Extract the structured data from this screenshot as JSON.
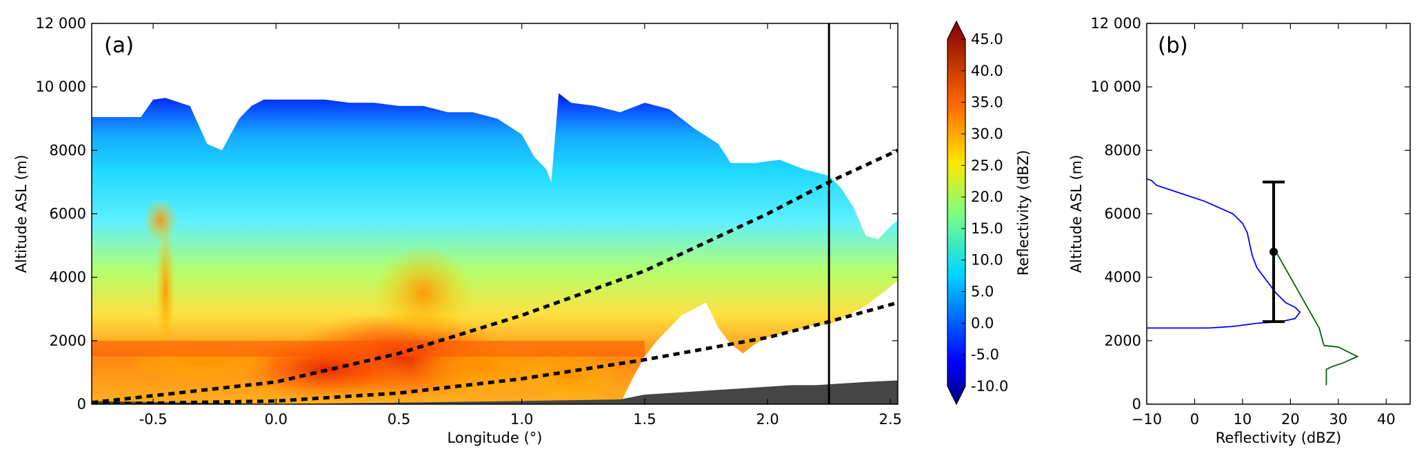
{
  "chart_data": [
    {
      "panel": "(a)",
      "type": "heatmap",
      "xlabel": "Longitude (°)",
      "ylabel": "Altitude ASL (m)",
      "xlim": [
        -0.75,
        2.53
      ],
      "ylim": [
        0,
        12000
      ],
      "xticks": [
        "-0.5",
        "0.0",
        "0.5",
        "1.0",
        "1.5",
        "2.0",
        "2.5"
      ],
      "yticks": [
        "0",
        "2000",
        "4000",
        "6000",
        "8000",
        "10 000",
        "12 000"
      ],
      "vertical_marker_x": 2.25,
      "colorbar": {
        "label": "Reflectivity (dBZ)",
        "ticks": [
          "-10.0",
          "-5.0",
          "0.0",
          "5.0",
          "10.0",
          "15.0",
          "20.0",
          "25.0",
          "30.0",
          "35.0",
          "40.0",
          "45.0"
        ],
        "range": [
          -10,
          45
        ],
        "colormap": "jet"
      },
      "echo_top_profile": {
        "x": [
          -0.75,
          -0.55,
          -0.5,
          -0.45,
          -0.35,
          -0.28,
          -0.22,
          -0.15,
          -0.1,
          -0.05,
          0.0,
          0.1,
          0.2,
          0.3,
          0.4,
          0.5,
          0.6,
          0.7,
          0.8,
          0.9,
          1.0,
          1.05,
          1.1,
          1.12,
          1.15,
          1.2,
          1.3,
          1.4,
          1.5,
          1.6,
          1.7,
          1.8,
          1.85,
          1.95,
          2.05,
          2.15,
          2.25,
          2.3,
          2.35,
          2.4,
          2.45,
          2.5,
          2.53
        ],
        "y": [
          9050,
          9050,
          9600,
          9650,
          9400,
          8200,
          8000,
          9000,
          9400,
          9600,
          9600,
          9600,
          9600,
          9500,
          9500,
          9400,
          9400,
          9200,
          9200,
          9000,
          8500,
          7800,
          7400,
          7000,
          9800,
          9500,
          9400,
          9200,
          9500,
          9300,
          8700,
          8200,
          7600,
          7600,
          7700,
          7400,
          7200,
          6800,
          6200,
          5300,
          5200,
          5600,
          5800
        ]
      },
      "echo_base_profile": {
        "x": [
          -0.75,
          1.4,
          1.45,
          1.5,
          1.55,
          1.6,
          1.65,
          1.7,
          1.75,
          1.8,
          1.85,
          1.9,
          1.95,
          2.0,
          2.05,
          2.1,
          2.15,
          2.2,
          2.25,
          2.3,
          2.35,
          2.4,
          2.45,
          2.5,
          2.53
        ],
        "y": [
          0,
          0,
          800,
          1500,
          2000,
          2400,
          2800,
          3000,
          3200,
          2400,
          1900,
          1600,
          1900,
          2100,
          2200,
          2300,
          2400,
          2500,
          2500,
          2700,
          2900,
          3100,
          3400,
          3700,
          3900
        ]
      },
      "terrain": {
        "x": [
          -0.75,
          0.0,
          0.5,
          1.0,
          1.4,
          1.5,
          1.6,
          1.7,
          1.8,
          1.9,
          2.0,
          2.1,
          2.2,
          2.3,
          2.4,
          2.53
        ],
        "y": [
          100,
          0,
          50,
          100,
          150,
          300,
          350,
          400,
          450,
          500,
          550,
          600,
          600,
          650,
          700,
          750
        ]
      },
      "bright_band_altitude_m": 1750,
      "beam_lines": [
        {
          "x": [
            -0.75,
            0.0,
            0.5,
            1.0,
            1.5,
            2.0,
            2.25,
            2.53
          ],
          "y": [
            50,
            700,
            1600,
            2800,
            4200,
            6000,
            7000,
            8000
          ]
        },
        {
          "x": [
            -0.75,
            0.0,
            0.5,
            1.0,
            1.5,
            2.0,
            2.25,
            2.53
          ],
          "y": [
            0,
            100,
            350,
            800,
            1400,
            2100,
            2600,
            3200
          ]
        }
      ]
    },
    {
      "panel": "(b)",
      "type": "line",
      "xlabel": "Reflectivity (dBZ)",
      "ylabel": "Altitude ASL (m)",
      "xlim": [
        -10,
        45
      ],
      "ylim": [
        0,
        12000
      ],
      "xticks": [
        "−10",
        "0",
        "10",
        "20",
        "30",
        "40"
      ],
      "yticks": [
        "0",
        "2000",
        "4000",
        "6000",
        "8000",
        "10 000",
        "12 000"
      ],
      "series": [
        {
          "color": "#0000ff",
          "x": [
            -10,
            -9,
            -8,
            -6,
            -2,
            2,
            5,
            8,
            10,
            11,
            12,
            13,
            15,
            17,
            19,
            21,
            22,
            21,
            18,
            13,
            8,
            3,
            0,
            -5,
            -10
          ],
          "y": [
            7100,
            7050,
            6900,
            6800,
            6600,
            6400,
            6200,
            6000,
            5700,
            5400,
            4700,
            4300,
            3900,
            3500,
            3200,
            3050,
            2900,
            2700,
            2600,
            2550,
            2450,
            2400,
            2400,
            2400,
            2400
          ]
        },
        {
          "color": "#006400",
          "x": [
            17,
            20,
            23,
            26,
            27,
            30,
            34,
            31,
            29,
            27.5,
            27.5
          ],
          "y": [
            4800,
            4000,
            3200,
            2400,
            1850,
            1800,
            1500,
            1300,
            1200,
            1100,
            600
          ]
        }
      ],
      "errorbar": {
        "x": 16.5,
        "y": 4800,
        "ymin": 2600,
        "ymax": 7000
      }
    }
  ],
  "panel_a_label": "(a)",
  "panel_b_label": "(b)"
}
